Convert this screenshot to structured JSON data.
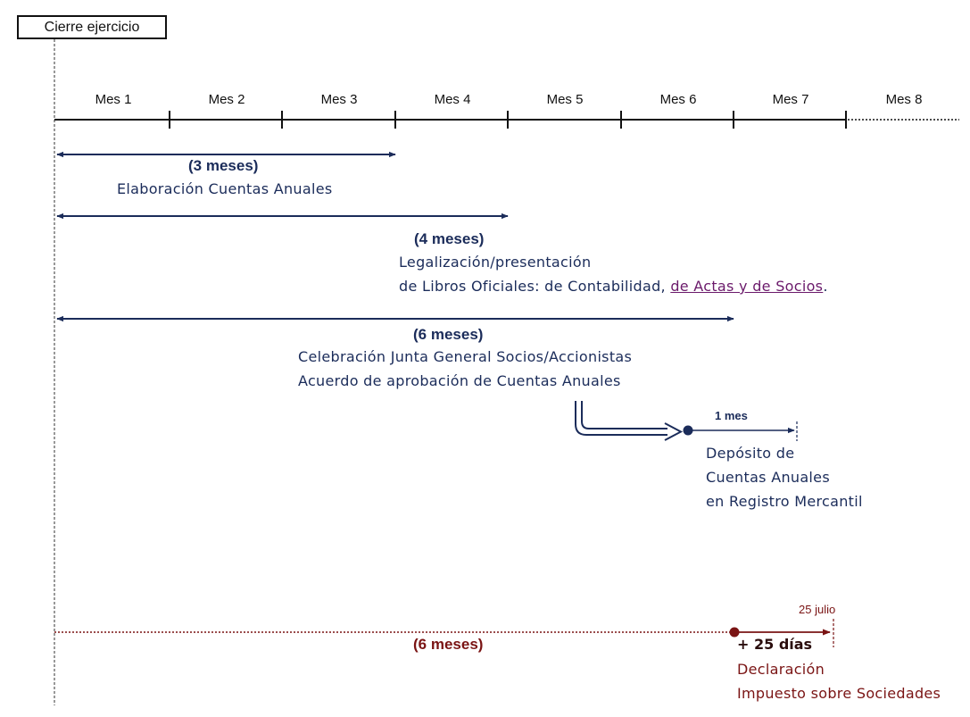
{
  "header": {
    "title": "Cierre ejercicio"
  },
  "timeline": {
    "months": [
      "Mes 1",
      "Mes 2",
      "Mes 3",
      "Mes 4",
      "Mes 5",
      "Mes 6",
      "Mes 7",
      "Mes 8"
    ]
  },
  "periods": {
    "cuentas": {
      "duration": "(3 meses)",
      "label": "Elaboración Cuentas Anuales"
    },
    "libros": {
      "duration": "(4 meses)",
      "line1": "Legalización/presentación",
      "line2_prefix": "de Libros Oficiales: de Contabilidad,",
      "line2_link": "de Actas  y de Socios",
      "line2_suffix": "."
    },
    "junta": {
      "duration": "(6 meses)",
      "line1": "Celebración Junta General Socios/Accionistas",
      "line2": "Acuerdo de aprobación de Cuentas Anuales"
    },
    "deposito": {
      "duration": "1 mes",
      "line1": "Depósito de",
      "line2": "Cuentas Anuales",
      "line3": "en Registro Mercantil"
    },
    "impuesto": {
      "duration": "(6 meses)",
      "extra": "+ 25 días",
      "date": "25 julio",
      "line1": "Declaración",
      "line2": "Impuesto sobre Sociedades"
    }
  },
  "colors": {
    "navy": "#1b2c5a",
    "red": "#7a1414",
    "link": "#6b1a6b"
  }
}
